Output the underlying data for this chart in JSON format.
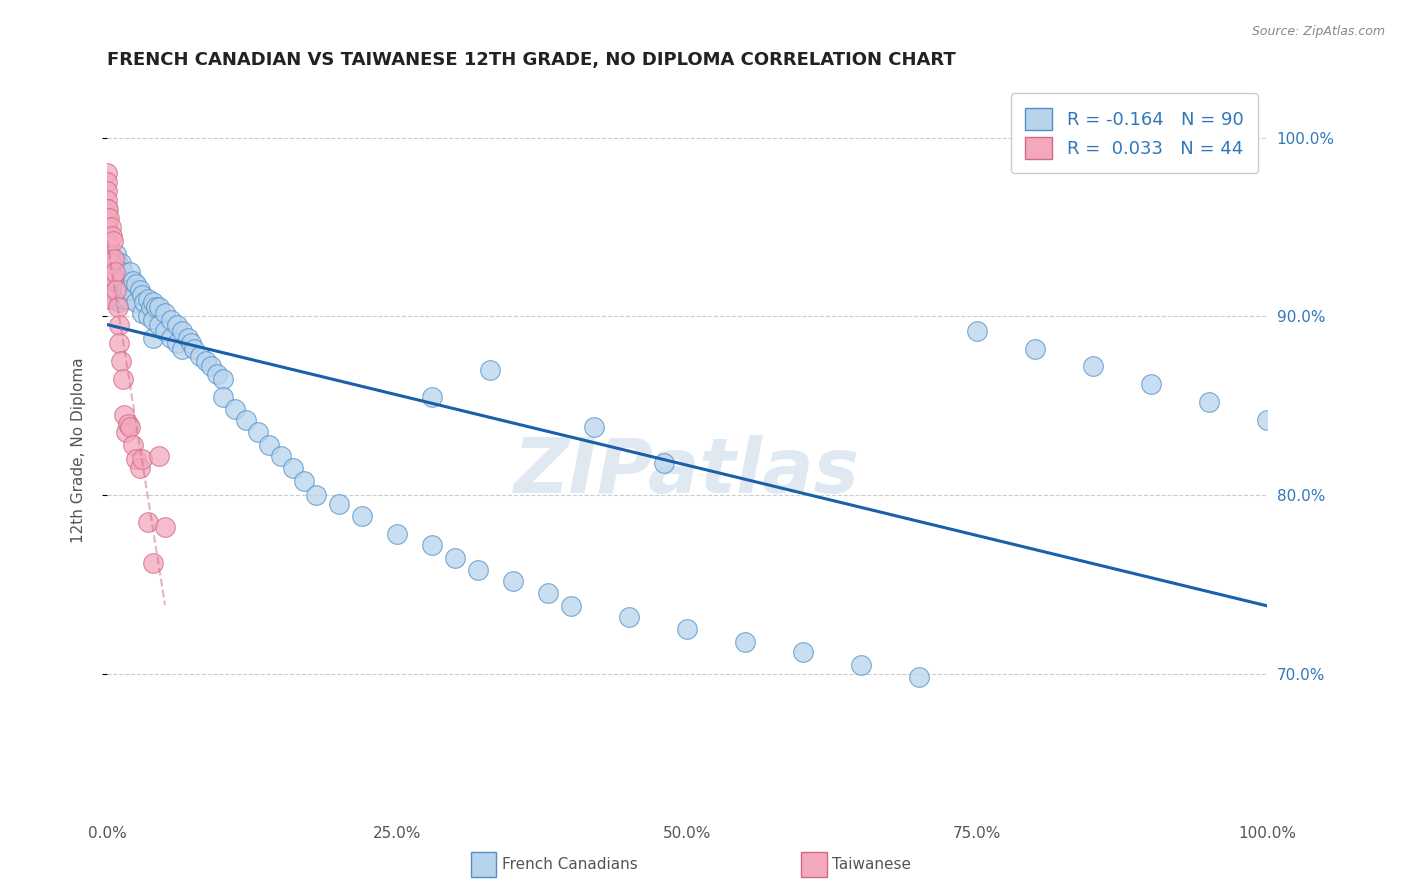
{
  "title": "FRENCH CANADIAN VS TAIWANESE 12TH GRADE, NO DIPLOMA CORRELATION CHART",
  "source": "Source: ZipAtlas.com",
  "ylabel": "12th Grade, No Diploma",
  "legend_bottom": [
    "French Canadians",
    "Taiwanese"
  ],
  "r_fc": -0.164,
  "n_fc": 90,
  "r_tw": 0.033,
  "n_tw": 44,
  "fc_fill": "#b8d4ed",
  "fc_edge": "#5090c8",
  "tw_fill": "#f4a8bc",
  "tw_edge": "#d06888",
  "trendline_fc_color": "#1a5faa",
  "trendline_tw_color": "#d06888",
  "watermark": "ZIPatlas",
  "right_ytick_labels": [
    "100.0%",
    "90.0%",
    "80.0%",
    "70.0%"
  ],
  "right_ytick_positions": [
    1.0,
    0.9,
    0.8,
    0.7
  ],
  "xlim": [
    0.0,
    1.0
  ],
  "ylim": [
    0.62,
    1.03
  ],
  "xtick_positions": [
    0.0,
    0.25,
    0.5,
    0.75,
    1.0
  ],
  "xtick_labels": [
    "0.0%",
    "25.0%",
    "50.0%",
    "75.0%",
    "100.0%"
  ],
  "ytick_grid_positions": [
    0.7,
    0.8,
    0.9,
    1.0
  ],
  "fc_x": [
    0.0,
    0.0,
    0.0,
    0.0,
    0.002,
    0.002,
    0.003,
    0.005,
    0.005,
    0.005,
    0.008,
    0.008,
    0.009,
    0.01,
    0.01,
    0.01,
    0.012,
    0.014,
    0.015,
    0.015,
    0.016,
    0.018,
    0.02,
    0.02,
    0.022,
    0.025,
    0.025,
    0.028,
    0.03,
    0.03,
    0.032,
    0.035,
    0.035,
    0.038,
    0.04,
    0.04,
    0.04,
    0.042,
    0.045,
    0.045,
    0.05,
    0.05,
    0.055,
    0.055,
    0.06,
    0.06,
    0.065,
    0.065,
    0.07,
    0.072,
    0.075,
    0.08,
    0.085,
    0.09,
    0.095,
    0.1,
    0.1,
    0.11,
    0.12,
    0.13,
    0.14,
    0.15,
    0.16,
    0.17,
    0.18,
    0.2,
    0.22,
    0.25,
    0.28,
    0.3,
    0.32,
    0.35,
    0.38,
    0.4,
    0.45,
    0.5,
    0.55,
    0.6,
    0.65,
    0.7,
    0.75,
    0.8,
    0.85,
    0.9,
    0.95,
    1.0,
    0.33,
    0.28,
    0.42,
    0.48
  ],
  "fc_y": [
    0.95,
    0.93,
    0.94,
    0.92,
    0.94,
    0.93,
    0.935,
    0.93,
    0.92,
    0.91,
    0.935,
    0.925,
    0.93,
    0.928,
    0.918,
    0.908,
    0.93,
    0.925,
    0.92,
    0.91,
    0.915,
    0.91,
    0.925,
    0.915,
    0.92,
    0.918,
    0.908,
    0.915,
    0.912,
    0.902,
    0.908,
    0.91,
    0.9,
    0.905,
    0.908,
    0.898,
    0.888,
    0.905,
    0.905,
    0.895,
    0.902,
    0.892,
    0.898,
    0.888,
    0.895,
    0.885,
    0.892,
    0.882,
    0.888,
    0.885,
    0.882,
    0.878,
    0.875,
    0.872,
    0.868,
    0.865,
    0.855,
    0.848,
    0.842,
    0.835,
    0.828,
    0.822,
    0.815,
    0.808,
    0.8,
    0.795,
    0.788,
    0.778,
    0.772,
    0.765,
    0.758,
    0.752,
    0.745,
    0.738,
    0.732,
    0.725,
    0.718,
    0.712,
    0.705,
    0.698,
    0.892,
    0.882,
    0.872,
    0.862,
    0.852,
    0.842,
    0.87,
    0.855,
    0.838,
    0.818
  ],
  "tw_x": [
    0.0,
    0.0,
    0.0,
    0.0,
    0.0,
    0.0,
    0.0,
    0.0,
    0.0,
    0.0,
    0.0,
    0.0,
    0.0,
    0.0,
    0.0,
    0.001,
    0.001,
    0.002,
    0.002,
    0.003,
    0.003,
    0.004,
    0.005,
    0.005,
    0.006,
    0.007,
    0.008,
    0.009,
    0.01,
    0.01,
    0.012,
    0.014,
    0.015,
    0.016,
    0.018,
    0.02,
    0.022,
    0.025,
    0.028,
    0.03,
    0.035,
    0.04,
    0.045,
    0.05
  ],
  "tw_y": [
    0.98,
    0.975,
    0.97,
    0.965,
    0.96,
    0.955,
    0.95,
    0.945,
    0.94,
    0.935,
    0.93,
    0.925,
    0.92,
    0.915,
    0.91,
    0.96,
    0.94,
    0.955,
    0.935,
    0.95,
    0.93,
    0.945,
    0.942,
    0.922,
    0.932,
    0.925,
    0.915,
    0.905,
    0.895,
    0.885,
    0.875,
    0.865,
    0.845,
    0.835,
    0.84,
    0.838,
    0.828,
    0.82,
    0.815,
    0.82,
    0.785,
    0.762,
    0.822,
    0.782
  ]
}
